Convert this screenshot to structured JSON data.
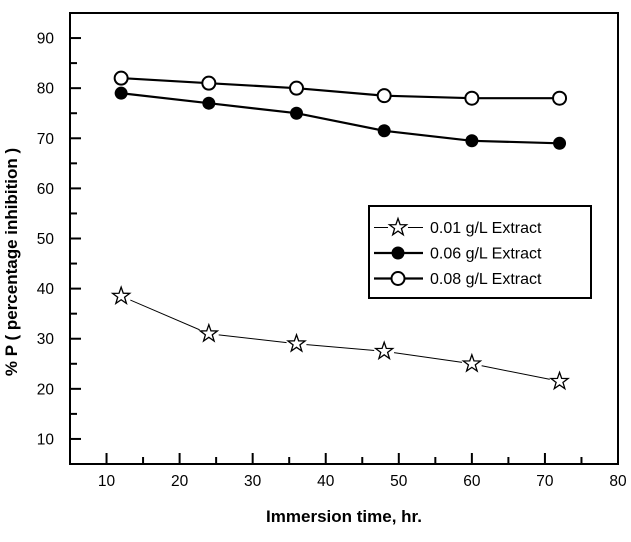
{
  "figure": {
    "background": "#ffffff",
    "ink": "#000000"
  },
  "chart_data": {
    "type": "line",
    "title": "",
    "xlabel": "Immersion time, hr.",
    "ylabel": "% P ( percentage inhibition )",
    "x": [
      12,
      24,
      36,
      48,
      60,
      72
    ],
    "series": [
      {
        "name": "0.01 g/L Extract",
        "marker": "open-star",
        "line_width": 1,
        "values": [
          38.5,
          31,
          29,
          27.5,
          25,
          21.5
        ]
      },
      {
        "name": "0.06 g/L Extract",
        "marker": "filled-circle",
        "line_width": 2.2,
        "values": [
          79,
          77,
          75,
          71.5,
          69.5,
          69
        ]
      },
      {
        "name": "0.08 g/L Extract",
        "marker": "open-circle",
        "line_width": 2.2,
        "values": [
          82,
          81,
          80,
          78.5,
          78,
          78
        ]
      }
    ],
    "xlim": [
      5,
      80
    ],
    "ylim": [
      5,
      95
    ],
    "xticks": [
      10,
      20,
      30,
      40,
      50,
      60,
      70,
      80
    ],
    "yticks": [
      10,
      20,
      30,
      40,
      50,
      60,
      70,
      80,
      90
    ],
    "minor_tick_step": 5,
    "grid": false,
    "frame": true,
    "legend_position": "middle-right"
  }
}
